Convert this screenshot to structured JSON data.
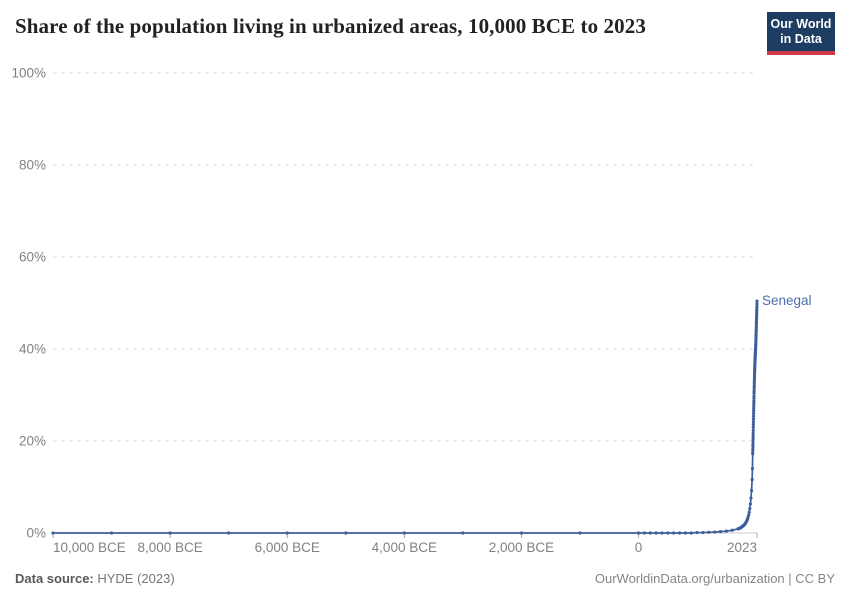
{
  "header": {
    "title": "Share of the population living in urbanized areas, 10,000 BCE to 2023",
    "logo": {
      "line1": "Our World",
      "line2": "in Data",
      "bg_color": "#1d3d63",
      "accent_color": "#cc3b47"
    }
  },
  "chart_data": {
    "type": "line",
    "title": "Share of the population living in urbanized areas, 10,000 BCE to 2023",
    "xlabel": "",
    "ylabel": "",
    "grid": "horizontal-dashed",
    "legend_position": "end-of-line-label",
    "x_axis": {
      "range": [
        -10000,
        2023
      ],
      "ticks": [
        {
          "value": -10000,
          "label": "10,000 BCE",
          "anchor": "start"
        },
        {
          "value": -8000,
          "label": "8,000 BCE",
          "anchor": "middle"
        },
        {
          "value": -6000,
          "label": "6,000 BCE",
          "anchor": "middle"
        },
        {
          "value": -4000,
          "label": "4,000 BCE",
          "anchor": "middle"
        },
        {
          "value": -2000,
          "label": "2,000 BCE",
          "anchor": "middle"
        },
        {
          "value": 0,
          "label": "0",
          "anchor": "middle"
        },
        {
          "value": 2023,
          "label": "2023",
          "anchor": "end"
        }
      ]
    },
    "y_axis": {
      "range": [
        0,
        100
      ],
      "unit": "%",
      "ticks": [
        {
          "value": 0,
          "label": "0%"
        },
        {
          "value": 20,
          "label": "20%"
        },
        {
          "value": 40,
          "label": "40%"
        },
        {
          "value": 60,
          "label": "60%"
        },
        {
          "value": 80,
          "label": "80%"
        },
        {
          "value": 100,
          "label": "100%"
        }
      ]
    },
    "series": [
      {
        "name": "Senegal",
        "color": "#3d5e9b",
        "label_color": "#4e6fae",
        "points": [
          [
            -10000,
            0
          ],
          [
            -9000,
            0
          ],
          [
            -8000,
            0
          ],
          [
            -7000,
            0
          ],
          [
            -6000,
            0
          ],
          [
            -5000,
            0
          ],
          [
            -4000,
            0
          ],
          [
            -3000,
            0
          ],
          [
            -2000,
            0
          ],
          [
            -1000,
            0
          ],
          [
            0,
            0
          ],
          [
            100,
            0
          ],
          [
            200,
            0
          ],
          [
            300,
            0
          ],
          [
            400,
            0
          ],
          [
            500,
            0
          ],
          [
            600,
            0
          ],
          [
            700,
            0
          ],
          [
            800,
            0
          ],
          [
            900,
            0
          ],
          [
            1000,
            0.1
          ],
          [
            1100,
            0.1
          ],
          [
            1200,
            0.15
          ],
          [
            1300,
            0.2
          ],
          [
            1400,
            0.3
          ],
          [
            1500,
            0.4
          ],
          [
            1600,
            0.6
          ],
          [
            1700,
            0.9
          ],
          [
            1710,
            0.95
          ],
          [
            1720,
            1.0
          ],
          [
            1730,
            1.05
          ],
          [
            1740,
            1.1
          ],
          [
            1750,
            1.2
          ],
          [
            1760,
            1.3
          ],
          [
            1770,
            1.4
          ],
          [
            1780,
            1.5
          ],
          [
            1790,
            1.6
          ],
          [
            1800,
            1.7
          ],
          [
            1810,
            1.85
          ],
          [
            1820,
            2.0
          ],
          [
            1830,
            2.2
          ],
          [
            1840,
            2.45
          ],
          [
            1850,
            2.7
          ],
          [
            1860,
            3.0
          ],
          [
            1870,
            3.4
          ],
          [
            1880,
            3.9
          ],
          [
            1890,
            4.5
          ],
          [
            1900,
            5.3
          ],
          [
            1910,
            6.3
          ],
          [
            1920,
            7.6
          ],
          [
            1930,
            9.2
          ],
          [
            1940,
            11.6
          ],
          [
            1945,
            14.0
          ],
          [
            1950,
            17.2
          ],
          [
            1951,
            17.7
          ],
          [
            1952,
            18.2
          ],
          [
            1953,
            18.8
          ],
          [
            1954,
            19.3
          ],
          [
            1955,
            19.9
          ],
          [
            1956,
            20.5
          ],
          [
            1957,
            21.1
          ],
          [
            1958,
            21.7
          ],
          [
            1959,
            22.3
          ],
          [
            1960,
            23.0
          ],
          [
            1961,
            23.6
          ],
          [
            1962,
            24.2
          ],
          [
            1963,
            24.8
          ],
          [
            1964,
            25.4
          ],
          [
            1965,
            26.0
          ],
          [
            1966,
            26.6
          ],
          [
            1967,
            27.1
          ],
          [
            1968,
            27.7
          ],
          [
            1969,
            28.2
          ],
          [
            1970,
            28.7
          ],
          [
            1971,
            29.3
          ],
          [
            1972,
            29.8
          ],
          [
            1973,
            30.4
          ],
          [
            1974,
            30.9
          ],
          [
            1975,
            31.5
          ],
          [
            1976,
            32.0
          ],
          [
            1977,
            32.5
          ],
          [
            1978,
            33.0
          ],
          [
            1979,
            33.5
          ],
          [
            1980,
            34.0
          ],
          [
            1981,
            34.5
          ],
          [
            1982,
            34.9
          ],
          [
            1983,
            35.3
          ],
          [
            1984,
            35.7
          ],
          [
            1985,
            36.1
          ],
          [
            1986,
            36.4
          ],
          [
            1987,
            36.8
          ],
          [
            1988,
            37.1
          ],
          [
            1989,
            37.5
          ],
          [
            1990,
            37.8
          ],
          [
            1991,
            38.1
          ],
          [
            1992,
            38.4
          ],
          [
            1993,
            38.7
          ],
          [
            1994,
            38.9
          ],
          [
            1995,
            39.2
          ],
          [
            1996,
            39.4
          ],
          [
            1997,
            39.7
          ],
          [
            1998,
            39.9
          ],
          [
            1999,
            40.1
          ],
          [
            2000,
            40.3
          ],
          [
            2001,
            40.7
          ],
          [
            2002,
            41.0
          ],
          [
            2003,
            41.4
          ],
          [
            2004,
            41.8
          ],
          [
            2005,
            42.2
          ],
          [
            2006,
            42.6
          ],
          [
            2007,
            43.0
          ],
          [
            2008,
            43.4
          ],
          [
            2009,
            43.8
          ],
          [
            2010,
            44.2
          ],
          [
            2011,
            44.7
          ],
          [
            2012,
            45.1
          ],
          [
            2013,
            45.6
          ],
          [
            2014,
            46.0
          ],
          [
            2015,
            46.5
          ],
          [
            2016,
            46.9
          ],
          [
            2017,
            47.4
          ],
          [
            2018,
            47.8
          ],
          [
            2019,
            48.3
          ],
          [
            2020,
            48.7
          ],
          [
            2021,
            49.2
          ],
          [
            2022,
            49.8
          ],
          [
            2023,
            50.4
          ]
        ]
      }
    ],
    "style": {
      "gridline_color": "#dedede",
      "axis_line_color": "#c8c8c8",
      "tick_color": "#a8a8a8",
      "tick_label_color": "#818181"
    }
  },
  "footer": {
    "source_label": "Data source:",
    "source_value": " HYDE (2023)",
    "right_text": "OurWorldinData.org/urbanization | CC BY"
  }
}
